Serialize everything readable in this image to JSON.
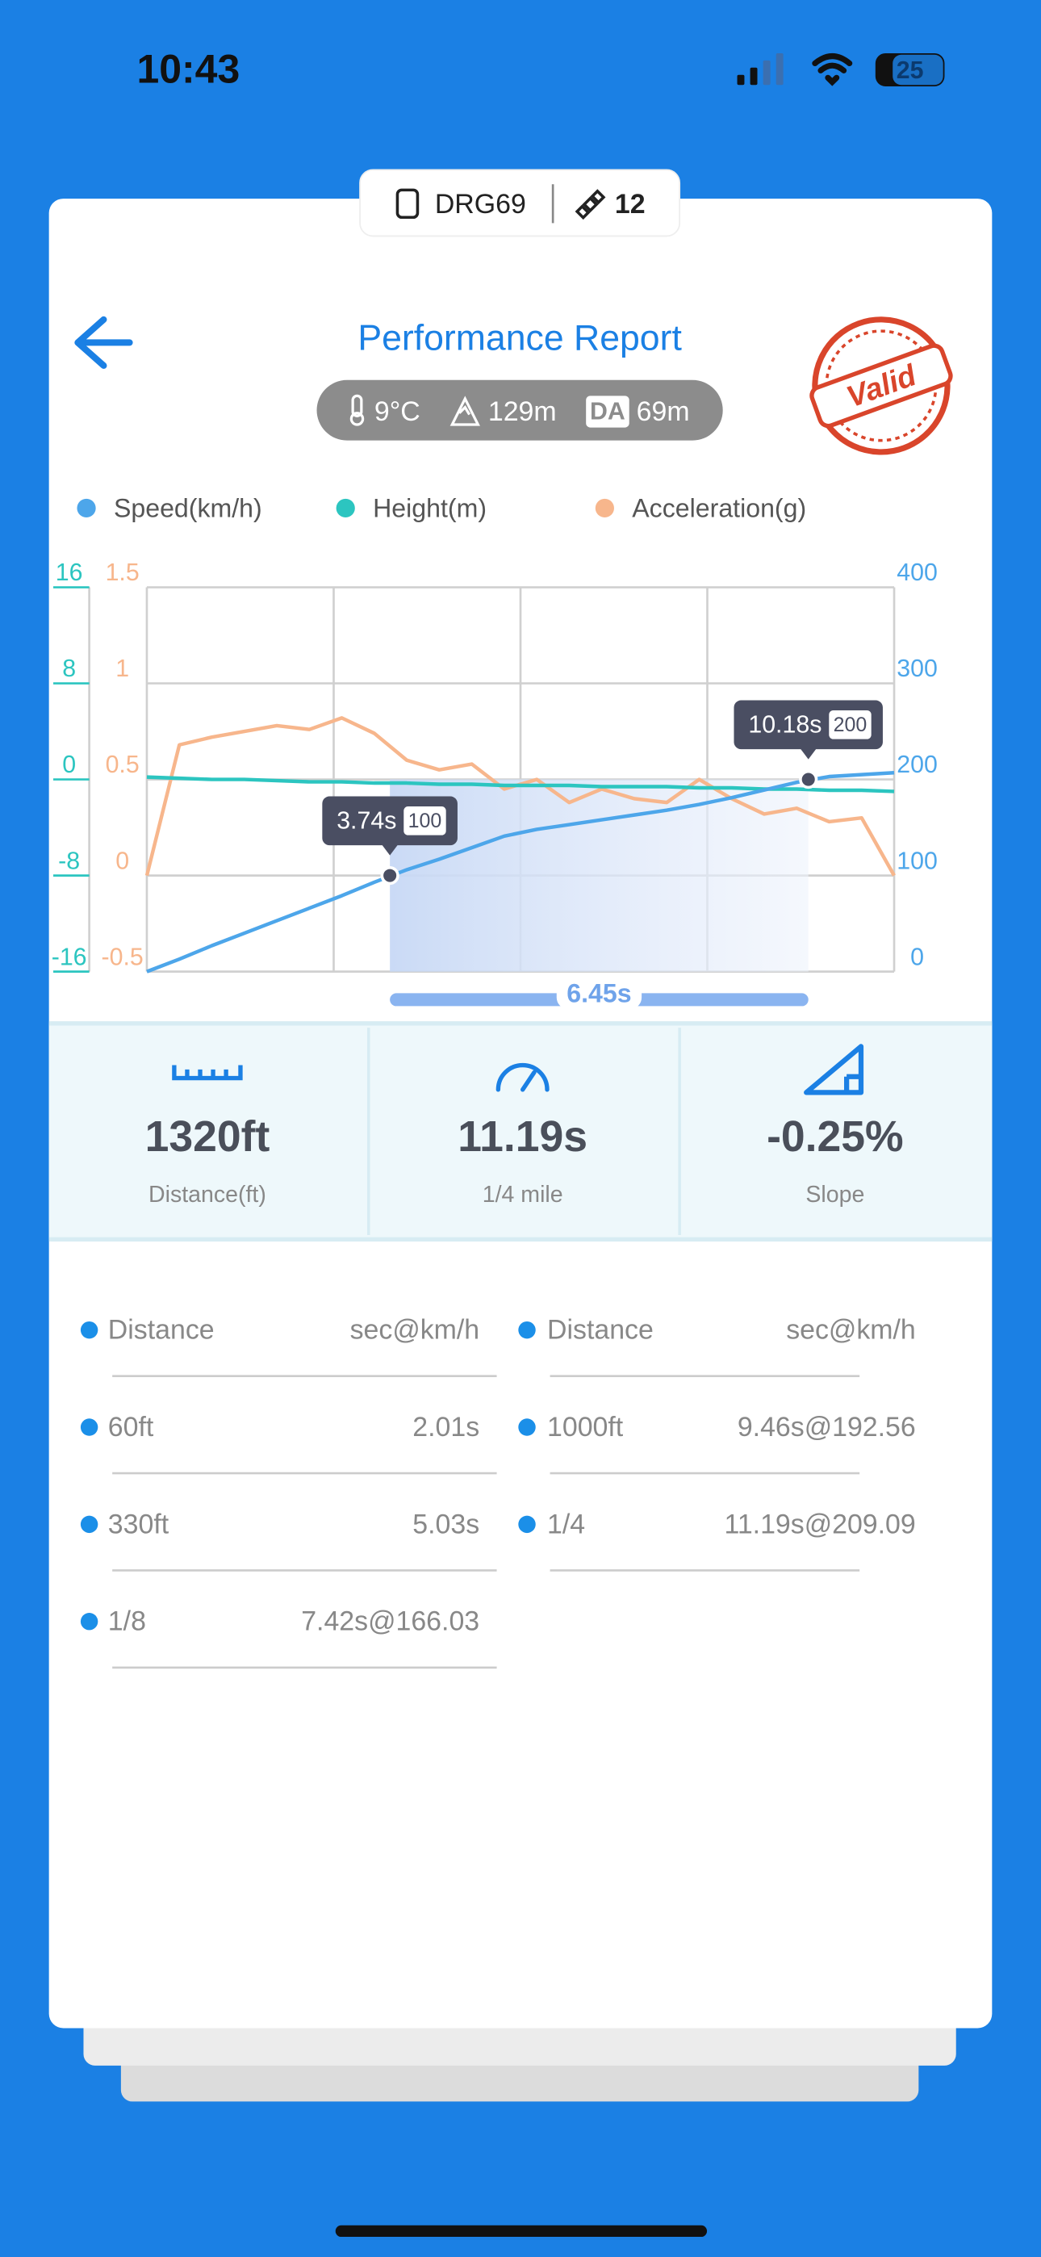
{
  "status_bar": {
    "time": "10:43",
    "battery": "25"
  },
  "badge": {
    "device": "DRG69",
    "satellites": "12"
  },
  "header": {
    "title": "Performance Report",
    "stamp": "Valid"
  },
  "conditions": {
    "temperature": "9°C",
    "altitude": "129m",
    "da_label": "DA",
    "density_altitude": "69m"
  },
  "chart_data": {
    "type": "line",
    "x": [
      0,
      0.5,
      1,
      1.5,
      2,
      2.5,
      3,
      3.5,
      4,
      4.5,
      5,
      5.5,
      6,
      6.5,
      7,
      7.5,
      8,
      8.5,
      9,
      9.5,
      10,
      10.5,
      11,
      11.5
    ],
    "xlim": [
      0,
      11.5
    ],
    "xticks": [
      0,
      2.875,
      5.75,
      8.625,
      11.5
    ],
    "ylim": [
      -16,
      16
    ],
    "yticks": [
      -16,
      -8,
      0,
      8,
      16
    ],
    "y2lim": [
      0,
      400
    ],
    "y2ticks": [
      0,
      100,
      200,
      300,
      400
    ],
    "y3lim": [
      -0.5,
      1.5
    ],
    "y3ticks": [
      -0.5,
      0,
      0.5,
      1,
      1.5
    ],
    "grid": true,
    "series": [
      {
        "name": "Speed(km/h)",
        "color": "#4da6ea",
        "axis": "y2",
        "values": [
          0,
          13,
          27,
          40,
          53,
          66,
          79,
          93,
          106,
          117,
          129,
          141,
          148,
          153,
          158,
          163,
          168,
          174,
          181,
          189,
          197,
          203,
          205,
          207
        ]
      },
      {
        "name": "Height(m)",
        "color": "#2cc5c0",
        "axis": "y",
        "values": [
          0.2,
          0.1,
          0,
          0,
          -0.1,
          -0.2,
          -0.2,
          -0.3,
          -0.3,
          -0.4,
          -0.4,
          -0.5,
          -0.5,
          -0.5,
          -0.6,
          -0.6,
          -0.6,
          -0.7,
          -0.7,
          -0.8,
          -0.8,
          -0.9,
          -0.9,
          -1.0
        ]
      },
      {
        "name": "Acceleration(g)",
        "color": "#f7b68c",
        "axis": "y3",
        "values": [
          0,
          0.68,
          0.72,
          0.75,
          0.78,
          0.76,
          0.82,
          0.74,
          0.6,
          0.55,
          0.58,
          0.45,
          0.5,
          0.38,
          0.45,
          0.4,
          0.38,
          0.5,
          0.4,
          0.32,
          0.35,
          0.28,
          0.3,
          0
        ]
      }
    ],
    "markers": [
      {
        "x": 3.74,
        "x_label": "3.74s",
        "value": 100
      },
      {
        "x": 10.18,
        "x_label": "10.18s",
        "value": 200
      }
    ],
    "range_label": "6.45s"
  },
  "stats": [
    {
      "value": "1320ft",
      "label": "Distance(ft)"
    },
    {
      "value": "11.19s",
      "label": "1/4 mile"
    },
    {
      "value": "-0.25%",
      "label": "Slope"
    }
  ],
  "splits": {
    "columns": [
      {
        "header": [
          "Distance",
          "sec@km/h"
        ],
        "rows": [
          [
            "60ft",
            "2.01s"
          ],
          [
            "330ft",
            "5.03s"
          ],
          [
            "1/8",
            "7.42s@166.03"
          ]
        ]
      },
      {
        "header": [
          "Distance",
          "sec@km/h"
        ],
        "rows": [
          [
            "1000ft",
            "9.46s@192.56"
          ],
          [
            "1/4",
            "11.19s@209.09"
          ]
        ]
      }
    ]
  }
}
